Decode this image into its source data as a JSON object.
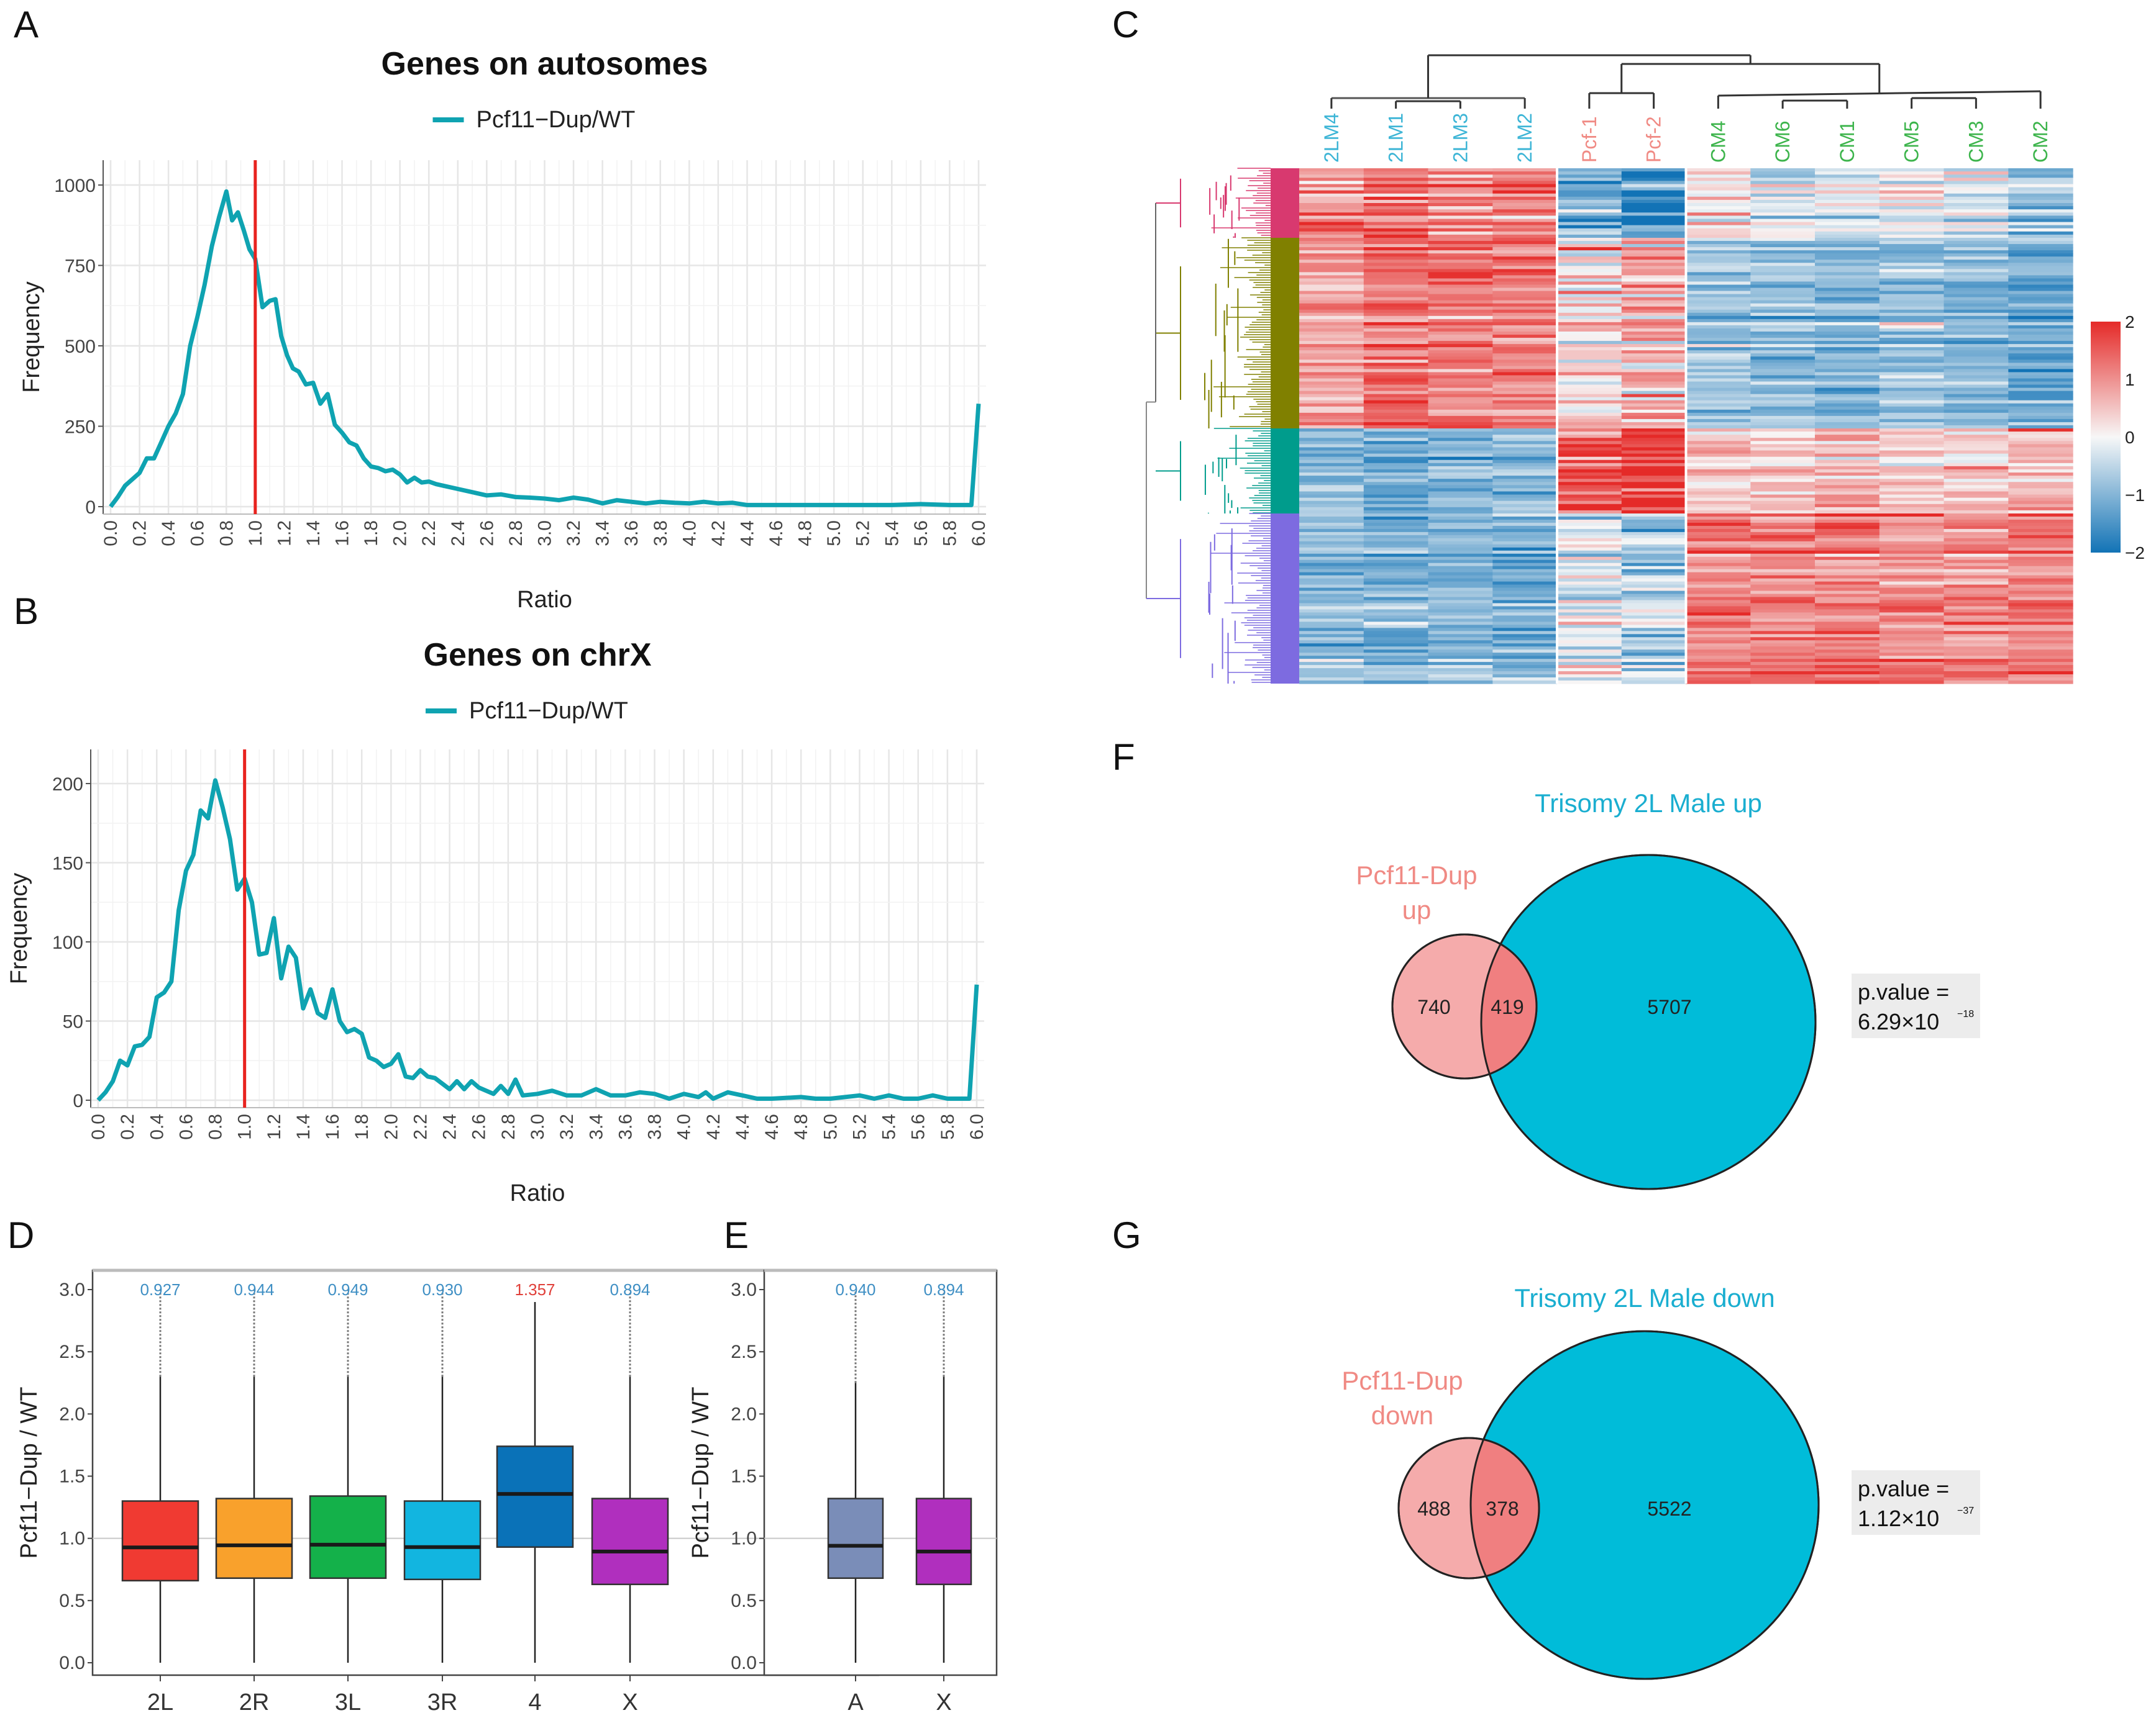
{
  "panels": {
    "A": "A",
    "B": "B",
    "C": "C",
    "D": "D",
    "E": "E",
    "F": "F",
    "G": "G"
  },
  "chart_data": [
    {
      "panel": "A",
      "type": "line",
      "title": "Genes on autosomes",
      "xlabel": "Ratio",
      "ylabel": "Frequency",
      "xlim": [
        0,
        6.0
      ],
      "ylim": [
        0,
        1080
      ],
      "xticks": [
        "0.0",
        "0.2",
        "0.4",
        "0.6",
        "0.8",
        "1.0",
        "1.2",
        "1.4",
        "1.6",
        "1.8",
        "2.0",
        "2.2",
        "2.4",
        "2.6",
        "2.8",
        "3.0",
        "3.2",
        "3.4",
        "3.6",
        "3.8",
        "4.0",
        "4.2",
        "4.4",
        "4.6",
        "4.8",
        "5.0",
        "5.2",
        "5.4",
        "5.6",
        "5.8",
        "6.0"
      ],
      "yticks": [
        "0",
        "250",
        "500",
        "750",
        "1000"
      ],
      "grid": true,
      "legend_position": "top",
      "reference_line": {
        "x": 1.0,
        "color": "#e8231f"
      },
      "series": [
        {
          "name": "Pcf11−Dup/WT",
          "color": "#0fa3b1",
          "x": [
            0,
            0.05,
            0.1,
            0.15,
            0.2,
            0.25,
            0.3,
            0.35,
            0.4,
            0.45,
            0.5,
            0.55,
            0.6,
            0.65,
            0.7,
            0.75,
            0.8,
            0.84,
            0.88,
            0.92,
            0.96,
            1.0,
            1.05,
            1.1,
            1.14,
            1.18,
            1.22,
            1.26,
            1.3,
            1.35,
            1.4,
            1.45,
            1.5,
            1.55,
            1.6,
            1.65,
            1.7,
            1.75,
            1.8,
            1.85,
            1.9,
            1.95,
            2.0,
            2.05,
            2.1,
            2.15,
            2.2,
            2.25,
            2.3,
            2.4,
            2.5,
            2.6,
            2.7,
            2.8,
            2.9,
            3.0,
            3.1,
            3.2,
            3.3,
            3.4,
            3.5,
            3.6,
            3.7,
            3.8,
            3.9,
            4.0,
            4.1,
            4.2,
            4.3,
            4.4,
            4.5,
            4.6,
            4.8,
            5.0,
            5.2,
            5.4,
            5.6,
            5.8,
            5.95,
            6.0
          ],
          "y": [
            0,
            30,
            65,
            85,
            105,
            150,
            150,
            200,
            250,
            290,
            350,
            500,
            590,
            690,
            810,
            900,
            980,
            890,
            915,
            860,
            800,
            770,
            620,
            640,
            645,
            530,
            470,
            430,
            420,
            380,
            385,
            320,
            350,
            255,
            230,
            200,
            190,
            150,
            125,
            120,
            110,
            115,
            100,
            75,
            90,
            75,
            78,
            70,
            65,
            55,
            45,
            35,
            38,
            30,
            28,
            25,
            20,
            28,
            22,
            10,
            20,
            15,
            10,
            15,
            12,
            10,
            15,
            10,
            12,
            5,
            5,
            5,
            5,
            5,
            5,
            5,
            8,
            5,
            5,
            320
          ]
        }
      ]
    },
    {
      "panel": "B",
      "type": "line",
      "title": "Genes on chrX",
      "xlabel": "Ratio",
      "ylabel": "Frequency",
      "xlim": [
        0,
        6.0
      ],
      "ylim": [
        0,
        220
      ],
      "xticks": [
        "0.0",
        "0.2",
        "0.4",
        "0.6",
        "0.8",
        "1.0",
        "1.2",
        "1.4",
        "1.6",
        "1.8",
        "2.0",
        "2.2",
        "2.4",
        "2.6",
        "2.8",
        "3.0",
        "3.2",
        "3.4",
        "3.6",
        "3.8",
        "4.0",
        "4.2",
        "4.4",
        "4.6",
        "4.8",
        "5.0",
        "5.2",
        "5.4",
        "5.6",
        "5.8",
        "6.0"
      ],
      "yticks": [
        "0",
        "50",
        "100",
        "150",
        "200"
      ],
      "grid": true,
      "legend_position": "top",
      "reference_line": {
        "x": 1.0,
        "color": "#e8231f"
      },
      "series": [
        {
          "name": "Pcf11−Dup/WT",
          "color": "#0fa3b1",
          "x": [
            0,
            0.05,
            0.1,
            0.15,
            0.2,
            0.25,
            0.3,
            0.35,
            0.4,
            0.45,
            0.5,
            0.55,
            0.6,
            0.65,
            0.7,
            0.75,
            0.8,
            0.85,
            0.9,
            0.95,
            1.0,
            1.05,
            1.1,
            1.15,
            1.2,
            1.25,
            1.3,
            1.35,
            1.4,
            1.45,
            1.5,
            1.55,
            1.6,
            1.65,
            1.7,
            1.75,
            1.8,
            1.85,
            1.9,
            1.95,
            2.0,
            2.05,
            2.1,
            2.15,
            2.2,
            2.25,
            2.3,
            2.4,
            2.45,
            2.5,
            2.55,
            2.6,
            2.7,
            2.75,
            2.8,
            2.85,
            2.9,
            3.0,
            3.1,
            3.2,
            3.3,
            3.4,
            3.5,
            3.6,
            3.7,
            3.8,
            3.9,
            4.0,
            4.1,
            4.15,
            4.2,
            4.3,
            4.4,
            4.5,
            4.6,
            4.8,
            4.9,
            5.0,
            5.2,
            5.3,
            5.4,
            5.5,
            5.6,
            5.7,
            5.8,
            5.95,
            6.0
          ],
          "y": [
            0,
            5,
            12,
            25,
            22,
            34,
            35,
            40,
            65,
            68,
            75,
            120,
            145,
            155,
            183,
            178,
            202,
            185,
            165,
            133,
            140,
            125,
            92,
            93,
            115,
            77,
            97,
            90,
            58,
            70,
            55,
            52,
            70,
            50,
            43,
            45,
            42,
            27,
            25,
            21,
            23,
            29,
            15,
            14,
            19,
            15,
            14,
            7,
            12,
            7,
            12,
            8,
            4,
            9,
            4,
            13,
            3,
            4,
            6,
            3,
            3,
            7,
            3,
            3,
            5,
            4,
            1,
            4,
            2,
            5,
            1,
            5,
            3,
            1,
            1,
            2,
            1,
            1,
            3,
            1,
            3,
            1,
            1,
            3,
            1,
            1,
            73
          ]
        }
      ]
    },
    {
      "panel": "C",
      "type": "heatmap",
      "columns": [
        {
          "label": "2LM4",
          "group": "2LM"
        },
        {
          "label": "2LM1",
          "group": "2LM"
        },
        {
          "label": "2LM3",
          "group": "2LM"
        },
        {
          "label": "2LM2",
          "group": "2LM"
        },
        {
          "label": "Pcf-1",
          "group": "Pcf"
        },
        {
          "label": "Pcf-2",
          "group": "Pcf"
        },
        {
          "label": "CM4",
          "group": "CM"
        },
        {
          "label": "CM6",
          "group": "CM"
        },
        {
          "label": "CM1",
          "group": "CM"
        },
        {
          "label": "CM5",
          "group": "CM"
        },
        {
          "label": "CM3",
          "group": "CM"
        },
        {
          "label": "CM2",
          "group": "CM"
        }
      ],
      "group_colors": {
        "2LM": "#3db5d6",
        "Pcf": "#f08a84",
        "CM": "#3cb44b"
      },
      "row_clusters": [
        {
          "color": "#d8396f",
          "share": 0.135,
          "column_means": [
            1.0,
            1.2,
            0.9,
            1.1,
            -1.2,
            -1.8,
            0.2,
            -0.3,
            -0.2,
            -0.1,
            -0.3,
            -0.8
          ]
        },
        {
          "color": "#808000",
          "share": 0.37,
          "column_means": [
            0.8,
            1.3,
            1.2,
            1.2,
            0.3,
            0.6,
            -0.8,
            -0.9,
            -1.0,
            -0.8,
            -1.0,
            -1.2
          ]
        },
        {
          "color": "#009c8c",
          "share": 0.165,
          "column_means": [
            -1.0,
            -1.2,
            -1.1,
            -1.0,
            1.6,
            1.8,
            0.3,
            0.4,
            0.5,
            0.3,
            0.4,
            0.6
          ]
        },
        {
          "color": "#7d6be0",
          "share": 0.33,
          "column_means": [
            -0.9,
            -1.1,
            -1.0,
            -1.1,
            -0.2,
            -0.6,
            1.2,
            1.1,
            1.2,
            1.1,
            1.0,
            1.2
          ]
        }
      ],
      "color_scale": {
        "min": -2,
        "max": 2,
        "ticks": [
          "2",
          "1",
          "0",
          "−1",
          "−2"
        ],
        "low": "#1273b6",
        "mid": "#f7f7f7",
        "high": "#e52a28"
      }
    },
    {
      "panel": "D",
      "type": "box",
      "ylabel": "Pcf11−Dup / WT",
      "ylim": [
        -0.15,
        3.15
      ],
      "yticks": [
        "0.0",
        "0.5",
        "1.0",
        "1.5",
        "2.0",
        "2.5",
        "3.0"
      ],
      "reference_line": 1.0,
      "categories": [
        "2L",
        "2R",
        "3L",
        "3R",
        "4",
        "X"
      ],
      "median_labels": [
        "0.927",
        "0.944",
        "0.949",
        "0.930",
        "1.357",
        "0.894"
      ],
      "label_colors": [
        "#3f8fc4",
        "#3f8fc4",
        "#3f8fc4",
        "#3f8fc4",
        "#e0403a",
        "#3f8fc4"
      ],
      "colors": [
        "#f03a32",
        "#f9a12c",
        "#14b14a",
        "#12b5e0",
        "#0a72b8",
        "#b02fbe"
      ],
      "boxes": [
        {
          "min": 0,
          "q1": 0.66,
          "median": 0.927,
          "q3": 1.3,
          "whisker_high": 2.3,
          "outlier_max": 3.0
        },
        {
          "min": 0,
          "q1": 0.68,
          "median": 0.944,
          "q3": 1.32,
          "whisker_high": 2.3,
          "outlier_max": 3.0
        },
        {
          "min": 0,
          "q1": 0.68,
          "median": 0.949,
          "q3": 1.34,
          "whisker_high": 2.3,
          "outlier_max": 3.0
        },
        {
          "min": 0,
          "q1": 0.67,
          "median": 0.93,
          "q3": 1.3,
          "whisker_high": 2.3,
          "outlier_max": 3.0
        },
        {
          "min": 0,
          "q1": 0.93,
          "median": 1.357,
          "q3": 1.74,
          "whisker_high": 2.9,
          "outlier_max": 2.9
        },
        {
          "min": 0,
          "q1": 0.63,
          "median": 0.894,
          "q3": 1.32,
          "whisker_high": 2.3,
          "outlier_max": 3.0
        }
      ]
    },
    {
      "panel": "E",
      "type": "box",
      "ylabel": "Pcf11−Dup / WT",
      "ylim": [
        -0.15,
        3.15
      ],
      "yticks": [
        "0.0",
        "0.5",
        "1.0",
        "1.5",
        "2.0",
        "2.5",
        "3.0"
      ],
      "reference_line": 1.0,
      "categories": [
        "A",
        "X"
      ],
      "median_labels": [
        "0.940",
        "0.894"
      ],
      "label_colors": [
        "#3f8fc4",
        "#3f8fc4"
      ],
      "colors": [
        "#7a8db8",
        "#b02fbe"
      ],
      "boxes": [
        {
          "min": 0,
          "q1": 0.68,
          "median": 0.94,
          "q3": 1.32,
          "whisker_high": 2.25,
          "outlier_max": 3.0
        },
        {
          "min": 0,
          "q1": 0.63,
          "median": 0.894,
          "q3": 1.32,
          "whisker_high": 2.3,
          "outlier_max": 3.0
        }
      ]
    },
    {
      "panel": "F",
      "type": "venn",
      "sets": [
        {
          "name_line1": "Pcf11-Dup",
          "name_line2": "up",
          "color": "#f4a6a6",
          "label_color": "#f08a84",
          "only": "740"
        },
        {
          "name": "Trisomy 2L Male up",
          "color": "#00bcd9",
          "label_color": "#1aaed0",
          "only": "5707"
        }
      ],
      "intersection": "419",
      "pvalue_label": "p.value =",
      "pvalue_mantissa": "6.29×10",
      "pvalue_exponent": "−18"
    },
    {
      "panel": "G",
      "type": "venn",
      "sets": [
        {
          "name_line1": "Pcf11-Dup",
          "name_line2": "down",
          "color": "#f4a6a6",
          "label_color": "#f08a84",
          "only": "488"
        },
        {
          "name": "Trisomy 2L Male down",
          "color": "#00bcd9",
          "label_color": "#1aaed0",
          "only": "5522"
        }
      ],
      "intersection": "378",
      "pvalue_label": "p.value =",
      "pvalue_mantissa": "1.12×10",
      "pvalue_exponent": "−37"
    }
  ]
}
